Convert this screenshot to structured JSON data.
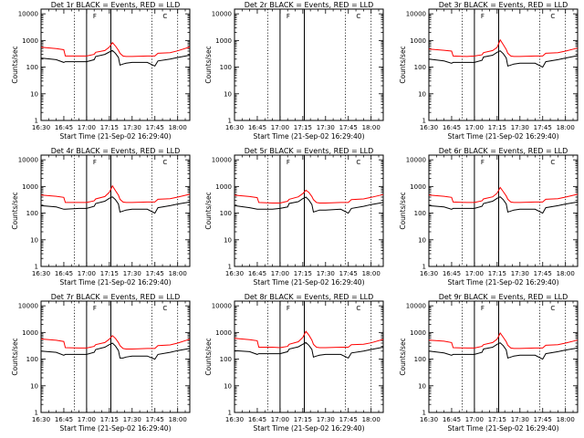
{
  "chart_data": {
    "type": "line",
    "y_scale": "log",
    "ylim": [
      1,
      15000
    ],
    "xlim": [
      "16:30",
      "18:08"
    ],
    "ytick_labels": [
      "1",
      "10",
      "100",
      "1000",
      "10000"
    ],
    "xtick_labels": [
      "16:30",
      "16:45",
      "17:00",
      "17:15",
      "17:30",
      "17:45",
      "18:00"
    ],
    "xlabel": "Start Time (21-Sep-02 16:29:40)",
    "ylabel": "Counts/sec",
    "legend_text": "BLACK = Events, RED = LLD",
    "series_colors": {
      "events": "#000000",
      "lld": "#ff0000"
    },
    "marker_letters": {
      "f": "F",
      "c": "C"
    },
    "marker_times": {
      "f": "17:06",
      "c": "17:52"
    },
    "solid_vlines": [
      "17:00",
      "17:16"
    ],
    "dotted_vlines": [
      "16:52",
      "17:43",
      "18:00"
    ],
    "x": [
      "16:30",
      "16:40",
      "16:45",
      "16:46",
      "16:55",
      "17:00",
      "17:05",
      "17:06",
      "17:12",
      "17:15",
      "17:17",
      "17:19",
      "17:21",
      "17:22",
      "17:24",
      "17:26",
      "17:30",
      "17:40",
      "17:45",
      "17:47",
      "17:55",
      "18:00",
      "18:08"
    ],
    "panels": [
      {
        "title": "Det 1r",
        "series": [
          {
            "key": "lld",
            "values": [
              560,
              500,
              450,
              260,
              260,
              260,
              300,
              360,
              420,
              560,
              830,
              620,
              430,
              330,
              260,
              250,
              250,
              260,
              260,
              330,
              350,
              410,
              570
            ]
          },
          {
            "key": "events",
            "values": [
              220,
              190,
              150,
              160,
              160,
              160,
              190,
              250,
              300,
              370,
              420,
              330,
              230,
              120,
              130,
              140,
              150,
              150,
              110,
              170,
              200,
              230,
              280
            ]
          }
        ]
      },
      {
        "title": "Det 2r",
        "series": []
      },
      {
        "title": "Det 3r",
        "series": [
          {
            "key": "lld",
            "values": [
              480,
              430,
              400,
              260,
              250,
              260,
              290,
              350,
              420,
              550,
              1050,
              700,
              460,
              330,
              260,
              250,
              250,
              260,
              260,
              330,
              350,
              400,
              520
            ]
          },
          {
            "key": "events",
            "values": [
              200,
              170,
              140,
              150,
              150,
              150,
              180,
              240,
              280,
              360,
              410,
              320,
              220,
              110,
              120,
              130,
              140,
              140,
              100,
              160,
              190,
              220,
              270
            ]
          }
        ]
      },
      {
        "title": "Det 4r",
        "series": [
          {
            "key": "lld",
            "values": [
              480,
              430,
              390,
              250,
              250,
              250,
              290,
              340,
              420,
              600,
              1050,
              700,
              470,
              330,
              260,
              250,
              250,
              260,
              260,
              330,
              350,
              400,
              510
            ]
          },
          {
            "key": "events",
            "values": [
              190,
              170,
              140,
              140,
              150,
              150,
              180,
              230,
              280,
              360,
              410,
              320,
              220,
              110,
              120,
              130,
              140,
              140,
              100,
              160,
              190,
              220,
              260
            ]
          }
        ]
      },
      {
        "title": "Det 5r",
        "series": [
          {
            "key": "lld",
            "values": [
              470,
              420,
              380,
              250,
              240,
              240,
              280,
              330,
              410,
              540,
              730,
              600,
              420,
              320,
              250,
              240,
              240,
              250,
              250,
              320,
              340,
              390,
              500
            ]
          },
          {
            "key": "events",
            "values": [
              190,
              160,
              140,
              140,
              140,
              150,
              170,
              230,
              270,
              350,
              400,
              310,
              210,
              110,
              120,
              130,
              130,
              140,
              100,
              150,
              180,
              210,
              250
            ]
          }
        ]
      },
      {
        "title": "Det 6r",
        "series": [
          {
            "key": "lld",
            "values": [
              480,
              430,
              390,
              260,
              250,
              250,
              290,
              340,
              410,
              560,
              920,
              640,
              440,
              330,
              260,
              250,
              250,
              260,
              260,
              330,
              350,
              400,
              510
            ]
          },
          {
            "key": "events",
            "values": [
              190,
              170,
              140,
              150,
              150,
              150,
              180,
              230,
              280,
              360,
              410,
              320,
              220,
              110,
              120,
              130,
              140,
              140,
              100,
              160,
              190,
              220,
              260
            ]
          }
        ]
      },
      {
        "title": "Det 7r",
        "series": [
          {
            "key": "lld",
            "values": [
              570,
              510,
              460,
              270,
              260,
              260,
              300,
              350,
              420,
              560,
              760,
              600,
              420,
              320,
              250,
              240,
              240,
              250,
              250,
              320,
              340,
              400,
              560
            ]
          },
          {
            "key": "events",
            "values": [
              200,
              180,
              140,
              150,
              150,
              150,
              180,
              230,
              280,
              350,
              400,
              310,
              210,
              110,
              110,
              120,
              130,
              130,
              100,
              150,
              180,
              210,
              250
            ]
          }
        ]
      },
      {
        "title": "Det 8r",
        "series": [
          {
            "key": "lld",
            "values": [
              600,
              540,
              490,
              280,
              280,
              270,
              300,
              360,
              450,
              650,
              1100,
              800,
              520,
              360,
              280,
              270,
              270,
              280,
              280,
              350,
              360,
              410,
              550
            ]
          },
          {
            "key": "events",
            "values": [
              210,
              190,
              150,
              160,
              160,
              160,
              190,
              240,
              290,
              360,
              420,
              330,
              230,
              120,
              130,
              140,
              150,
              150,
              110,
              170,
              200,
              230,
              280
            ]
          }
        ]
      },
      {
        "title": "Det 9r",
        "series": [
          {
            "key": "lld",
            "values": [
              520,
              470,
              420,
              270,
              260,
              260,
              300,
              350,
              420,
              560,
              950,
              660,
              450,
              330,
              260,
              250,
              250,
              260,
              260,
              330,
              350,
              400,
              520
            ]
          },
          {
            "key": "events",
            "values": [
              200,
              170,
              140,
              150,
              150,
              150,
              180,
              240,
              280,
              360,
              410,
              320,
              220,
              110,
              120,
              130,
              140,
              140,
              100,
              160,
              190,
              220,
              260
            ]
          }
        ]
      }
    ]
  }
}
